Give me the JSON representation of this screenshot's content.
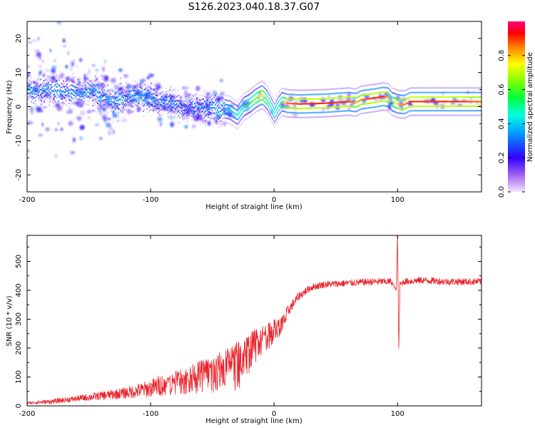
{
  "title": "S126.2023.040.18.37.G07",
  "chart_data": [
    {
      "type": "heatmap",
      "title": "",
      "xlabel": "Height of straight line (km)",
      "ylabel": "Frequency (Hz)",
      "xlim": [
        -200,
        168
      ],
      "ylim": [
        -25,
        25
      ],
      "x_ticks": [
        "-200",
        "-100",
        "0",
        "100"
      ],
      "y_ticks": [
        "-20",
        "-10",
        "0",
        "10",
        "20"
      ],
      "colorbar": {
        "label": "Normalized spectral amplitude",
        "range": [
          0,
          1
        ],
        "ticks": [
          "0.0",
          "0.2",
          "0.4",
          "0.6",
          "0.8"
        ],
        "colormap": [
          "#f0e6ff",
          "#8a2be2",
          "#0000ff",
          "#00ffff",
          "#00ff00",
          "#ffff00",
          "#ff0000",
          "#ff0080"
        ]
      },
      "ridge": {
        "x": [
          -175,
          -160,
          -150,
          -140,
          -130,
          -120,
          -110,
          -100,
          -90,
          -80,
          -70,
          -60,
          -50,
          -42,
          -36,
          -30,
          -25,
          -20,
          -15,
          -10,
          -6,
          -3,
          0,
          3,
          6,
          10,
          20,
          40,
          60,
          66,
          70,
          80,
          88,
          92,
          95,
          100,
          105,
          110,
          130,
          150,
          168
        ],
        "freq_hz": [
          4.5,
          4.0,
          4.5,
          3.5,
          1.5,
          2.5,
          3.5,
          2.5,
          1.5,
          0.5,
          0.0,
          -0.5,
          -0.5,
          -0.5,
          -1.0,
          -2.5,
          0.0,
          1.0,
          2.5,
          3.5,
          2.0,
          0.0,
          -2.0,
          0.0,
          1.5,
          1.0,
          0.8,
          1.0,
          1.5,
          1.2,
          2.0,
          2.5,
          3.0,
          2.8,
          1.5,
          0.8,
          0.6,
          1.5,
          1.5,
          1.5,
          1.5
        ],
        "amplitude": [
          0.35,
          0.35,
          0.4,
          0.35,
          0.35,
          0.35,
          0.4,
          0.35,
          0.3,
          0.3,
          0.3,
          0.3,
          0.35,
          0.4,
          0.4,
          0.45,
          0.5,
          0.55,
          0.65,
          0.8,
          0.55,
          0.5,
          0.45,
          0.5,
          0.6,
          0.85,
          0.9,
          0.9,
          0.9,
          0.8,
          0.85,
          0.9,
          0.9,
          0.8,
          0.6,
          0.8,
          0.85,
          0.9,
          0.9,
          0.9,
          0.85
        ]
      }
    },
    {
      "type": "line",
      "title": "",
      "xlabel": "Height of straight line (km)",
      "ylabel": "SNR (10 * v/v)",
      "xlim": [
        -200,
        168
      ],
      "ylim": [
        0,
        590
      ],
      "x_ticks": [
        "-200",
        "-100",
        "0",
        "100"
      ],
      "y_ticks": [
        "0",
        "100",
        "200",
        "300",
        "400",
        "500"
      ],
      "color": "#e8222a",
      "series": [
        {
          "x": [
            -200,
            -180,
            -160,
            -140,
            -120,
            -100,
            -90,
            -80,
            -70,
            -60,
            -50,
            -40,
            -30,
            -25,
            -20,
            -15,
            -10,
            -5,
            0,
            5,
            10,
            20,
            30,
            40,
            60,
            80,
            95,
            99,
            100,
            101,
            102,
            105,
            120,
            140,
            168
          ],
          "y": [
            10,
            15,
            25,
            35,
            45,
            60,
            75,
            90,
            100,
            115,
            125,
            140,
            160,
            180,
            200,
            220,
            240,
            250,
            270,
            280,
            320,
            380,
            410,
            420,
            425,
            430,
            430,
            400,
            590,
            200,
            420,
            430,
            435,
            430,
            430
          ],
          "noise_amplitude": [
            5,
            8,
            10,
            15,
            20,
            30,
            40,
            50,
            60,
            70,
            80,
            90,
            110,
            100,
            90,
            80,
            70,
            60,
            50,
            40,
            20,
            15,
            12,
            12,
            12,
            12,
            12,
            0,
            0,
            0,
            10,
            12,
            12,
            12,
            12
          ]
        }
      ]
    }
  ]
}
